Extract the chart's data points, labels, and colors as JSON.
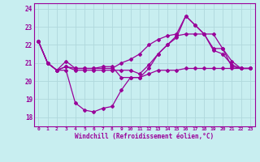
{
  "xlabel": "Windchill (Refroidissement éolien,°C)",
  "bg_color": "#c8eef0",
  "line_color": "#990099",
  "grid_color": "#b0d8dc",
  "xlim": [
    -0.5,
    23.5
  ],
  "ylim": [
    17.5,
    24.3
  ],
  "yticks": [
    18,
    19,
    20,
    21,
    22,
    23,
    24
  ],
  "xticks": [
    0,
    1,
    2,
    3,
    4,
    5,
    6,
    7,
    8,
    9,
    10,
    11,
    12,
    13,
    14,
    15,
    16,
    17,
    18,
    19,
    20,
    21,
    22,
    23
  ],
  "series": [
    [
      22.2,
      21.0,
      20.6,
      21.1,
      20.7,
      20.7,
      20.7,
      20.8,
      20.8,
      20.2,
      20.2,
      20.2,
      20.7,
      21.5,
      22.0,
      22.5,
      22.6,
      22.6,
      22.6,
      21.8,
      21.8,
      20.8,
      20.7,
      20.7
    ],
    [
      22.2,
      21.0,
      20.6,
      20.6,
      18.8,
      18.4,
      18.3,
      18.5,
      18.6,
      19.5,
      20.2,
      20.2,
      20.4,
      20.6,
      20.6,
      20.6,
      20.7,
      20.7,
      20.7,
      20.7,
      20.7,
      20.7,
      20.7,
      20.7
    ],
    [
      22.2,
      21.0,
      20.6,
      20.8,
      20.7,
      20.7,
      20.7,
      20.7,
      20.7,
      21.0,
      21.2,
      21.5,
      22.0,
      22.3,
      22.5,
      22.6,
      23.6,
      23.1,
      22.6,
      21.7,
      21.5,
      20.9,
      20.7,
      20.7
    ],
    [
      22.2,
      21.0,
      20.6,
      20.8,
      20.6,
      20.6,
      20.6,
      20.6,
      20.6,
      20.6,
      20.6,
      20.4,
      20.9,
      21.5,
      22.0,
      22.4,
      23.6,
      23.1,
      22.6,
      22.6,
      21.8,
      21.1,
      20.7,
      20.7
    ]
  ]
}
